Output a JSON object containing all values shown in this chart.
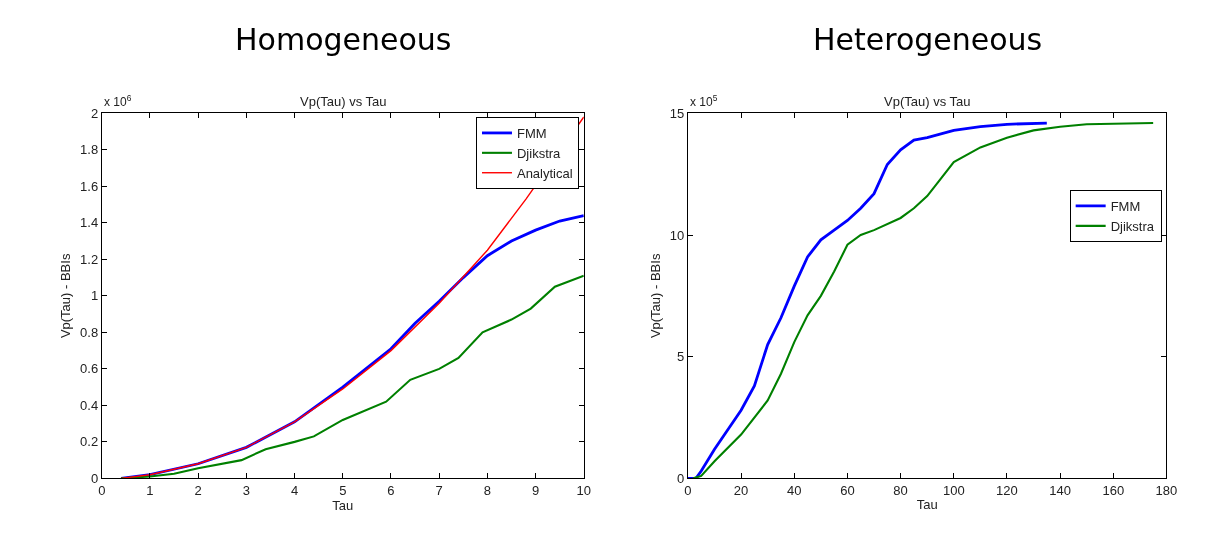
{
  "chart_data": [
    {
      "type": "line",
      "title": "Homogeneous",
      "subtitle": "Vp(Tau) vs Tau",
      "xlabel": "Tau",
      "ylabel": "Vp(Tau) - BBIs",
      "annotations": [
        "x 10$^{6}$"
      ],
      "xlim": [
        0,
        10
      ],
      "xticks": [
        0,
        1,
        2,
        3,
        4,
        5,
        6,
        7,
        8,
        9,
        10
      ],
      "ylim": [
        0,
        2
      ],
      "yticks": [
        0,
        0.2,
        0.4,
        0.6,
        0.8,
        1,
        1.2,
        1.4,
        1.6,
        1.8,
        2
      ],
      "legend": "top right",
      "line_style": "solid",
      "marker": "none",
      "series": [
        {
          "name": "FMM",
          "color": "#0000ff",
          "x": [
            0.4,
            1,
            2,
            3,
            4,
            5,
            6,
            6.5,
            7,
            7.5,
            8,
            8.5,
            9,
            9.5,
            10
          ],
          "values": [
            0,
            0.02,
            0.08,
            0.17,
            0.31,
            0.5,
            0.71,
            0.85,
            0.97,
            1.1,
            1.22,
            1.3,
            1.36,
            1.41,
            1.44
          ]
        },
        {
          "name": "Djikstra",
          "color": "#008000",
          "x": [
            0.4,
            1,
            1.5,
            2,
            2.9,
            3.4,
            4,
            4.4,
            5,
            5.9,
            6.4,
            7,
            7.4,
            7.9,
            8.5,
            8.9,
            9.4,
            10
          ],
          "values": [
            0,
            0.01,
            0.025,
            0.055,
            0.1,
            0.16,
            0.2,
            0.23,
            0.32,
            0.42,
            0.54,
            0.6,
            0.66,
            0.8,
            0.87,
            0.93,
            1.05,
            1.11
          ]
        },
        {
          "name": "Analytical",
          "color": "#ff0000",
          "x": [
            0.4,
            1,
            2,
            3,
            4,
            5,
            6,
            7,
            8,
            8.8,
            10
          ],
          "values": [
            0,
            0.02,
            0.08,
            0.17,
            0.31,
            0.49,
            0.7,
            0.96,
            1.25,
            1.53,
            1.98
          ]
        }
      ]
    },
    {
      "type": "line",
      "title": "Heterogeneous",
      "subtitle": "Vp(Tau) vs Tau",
      "xlabel": "Tau",
      "ylabel": "Vp(Tau) - BBIs",
      "annotations": [
        "x 10$^{5}$"
      ],
      "xlim": [
        0,
        180
      ],
      "xticks": [
        0,
        20,
        40,
        60,
        80,
        100,
        120,
        140,
        160,
        180
      ],
      "ylim": [
        0,
        15
      ],
      "yticks": [
        0,
        5,
        10,
        15
      ],
      "legend": "right",
      "line_style": "solid",
      "marker": "none",
      "series": [
        {
          "name": "FMM",
          "color": "#0000ff",
          "x": [
            0,
            3,
            5,
            10,
            15,
            20,
            25,
            30,
            35,
            40,
            45,
            50,
            55,
            60,
            65,
            70,
            75,
            80,
            85,
            90,
            100,
            110,
            120,
            135
          ],
          "values": [
            0,
            0,
            0.3,
            1.2,
            2,
            2.8,
            3.8,
            5.5,
            6.6,
            7.9,
            9.1,
            9.8,
            10.2,
            10.6,
            11.1,
            11.7,
            12.9,
            13.5,
            13.9,
            14,
            14.3,
            14.45,
            14.55,
            14.6
          ]
        },
        {
          "name": "Djikstra",
          "color": "#008000",
          "x": [
            2,
            5,
            10,
            20,
            30,
            35,
            40,
            45,
            50,
            55,
            60,
            65,
            70,
            80,
            85,
            90,
            95,
            100,
            110,
            120,
            130,
            140,
            150,
            175
          ],
          "values": [
            0,
            0.1,
            0.7,
            1.8,
            3.2,
            4.3,
            5.6,
            6.7,
            7.5,
            8.5,
            9.6,
            10,
            10.2,
            10.7,
            11.1,
            11.6,
            12.3,
            13,
            13.6,
            14,
            14.3,
            14.45,
            14.55,
            14.6
          ]
        }
      ]
    }
  ]
}
